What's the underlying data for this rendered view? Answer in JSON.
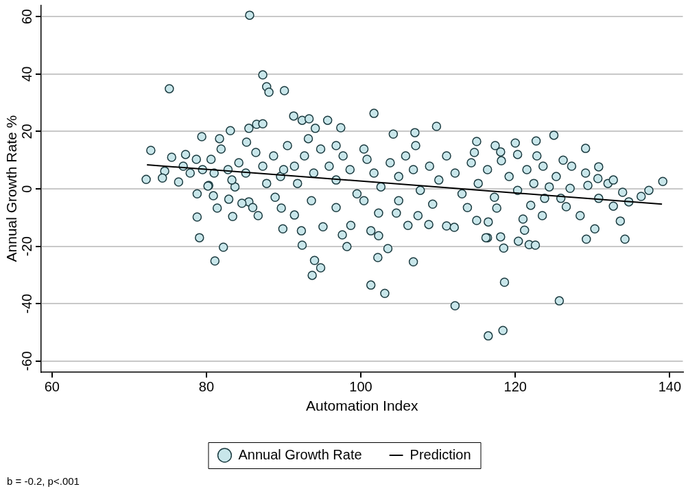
{
  "chart_data": {
    "type": "scatter",
    "xlabel": "Automation Index",
    "ylabel": "Annual Growth Rate %",
    "xlim": [
      58.6,
      141.7
    ],
    "ylim": [
      -63.8,
      64
    ],
    "xticks": [
      60,
      80,
      100,
      120,
      140
    ],
    "yticks": [
      -60,
      -40,
      -20,
      0,
      20,
      40,
      60
    ],
    "grid": "y",
    "legend": "bottom",
    "marker": "circle",
    "annotations": [
      "b = -0.2, p<.001"
    ],
    "series": [
      {
        "name": "Annual Growth Rate",
        "color": "#c8e6ea",
        "x": [
          85.6,
          75.2,
          87.3,
          87.8,
          88.1,
          90.1,
          101.7,
          91.3,
          92.4,
          93.3,
          95.7,
          97.4,
          109.8,
          104.2,
          107.0,
          115.0,
          83.1,
          79.4,
          72.8,
          85.5,
          86.5,
          87.3,
          81.7,
          72.2,
          75.5,
          77.3,
          74.6,
          74.3,
          76.4,
          78.7,
          80.3,
          125.0,
          122.7,
          120.0,
          129.1,
          126.2,
          130.8,
          130.7,
          132.0,
          139.1,
          127.1,
          118.1,
          120.3,
          132.7,
          128.4,
          130.3,
          129.2,
          134.2,
          133.6,
          118.6,
          125.7,
          116.5,
          118.4,
          116.4,
          118.1,
          118.5,
          120.4,
          121.8,
          122.6,
          121.2,
          121.0,
          123.5,
          122.0,
          116.5,
          117.6,
          126.6,
          125.9,
          123.8,
          130.8,
          134.7,
          136.3,
          137.3,
          133.9,
          129.4,
          89.9,
          92.3,
          92.4,
          94.0,
          94.8,
          93.7,
          97.6,
          98.2,
          98.7,
          101.3,
          102.3,
          103.5,
          102.2,
          101.3,
          103.1,
          106.8,
          112.2,
          108.8,
          111.1,
          112.1,
          95.1,
          91.4,
          89.7,
          102.3,
          104.6,
          106.1,
          107.4,
          115.0,
          116.2,
          78.8,
          79.1,
          82.2,
          81.1,
          81.4,
          83.4,
          86.7,
          85.5,
          84.6,
          82.9,
          80.2,
          80.9,
          80.6,
          81.9,
          82.8,
          84.2,
          85.2,
          86.4,
          87.3,
          88.7,
          89.6,
          90.5,
          91.4,
          91.8,
          92.7,
          93.9,
          94.8,
          95.9,
          96.8,
          97.7,
          98.6,
          99.5,
          100.8,
          101.7,
          102.6,
          103.8,
          104.9,
          105.8,
          106.8,
          107.7,
          108.9,
          110.1,
          111.1,
          112.2,
          113.1,
          114.3,
          115.2,
          116.4,
          117.3,
          118.2,
          119.2,
          120.3,
          121.5,
          122.4,
          123.6,
          124.4,
          125.3,
          78.8,
          83.7,
          86.0,
          88.9,
          93.6,
          96.8,
          100.4,
          104.9,
          109.3,
          113.8,
          77.0,
          77.9,
          79.5,
          81.0,
          83.3,
          85.1,
          87.8,
          90.0,
          93.2,
          94.1,
          96.8,
          100.4,
          107.1,
          114.7,
          117.4,
          122.8,
          127.3,
          129.1,
          132.7
        ],
        "values": [
          60.5,
          34.9,
          39.7,
          35.6,
          33.7,
          34.2,
          26.3,
          25.4,
          23.9,
          24.4,
          23.9,
          21.3,
          21.8,
          19.1,
          19.6,
          16.5,
          20.3,
          18.2,
          13.4,
          21.1,
          22.5,
          22.7,
          17.5,
          3.3,
          11.0,
          12.0,
          6.2,
          3.8,
          2.4,
          10.3,
          1.2,
          18.7,
          16.7,
          16.0,
          14.1,
          10.0,
          7.7,
          3.6,
          1.9,
          2.6,
          0.2,
          12.9,
          12.0,
          -6.0,
          -9.3,
          -13.9,
          -17.5,
          -17.5,
          -11.2,
          -32.5,
          -39.0,
          -51.2,
          -49.3,
          -17.0,
          -16.7,
          -20.6,
          -18.2,
          -19.4,
          -19.6,
          -14.4,
          -10.5,
          -9.3,
          -5.7,
          -11.5,
          -6.7,
          -6.2,
          -3.3,
          -3.3,
          -3.3,
          -4.5,
          -2.6,
          -0.5,
          -1.2,
          1.2,
          -13.9,
          -14.6,
          -19.6,
          -24.9,
          -27.5,
          -30.1,
          -16.0,
          -20.1,
          -12.7,
          -14.6,
          -16.3,
          -20.8,
          -23.9,
          -33.5,
          -36.4,
          -25.4,
          -40.7,
          -12.4,
          -12.9,
          -13.4,
          -13.2,
          -9.1,
          -6.7,
          -8.4,
          -8.4,
          -12.7,
          -9.3,
          -11.0,
          -17.0,
          -9.8,
          -17.0,
          -20.3,
          -25.1,
          -6.7,
          -9.6,
          -9.3,
          -4.5,
          -5.0,
          -3.6,
          1.0,
          -2.4,
          10.3,
          13.9,
          6.7,
          9.1,
          16.3,
          12.7,
          7.9,
          11.5,
          4.3,
          15.1,
          7.9,
          1.9,
          11.5,
          5.5,
          13.9,
          7.9,
          3.1,
          11.5,
          6.7,
          -1.7,
          10.3,
          5.5,
          0.7,
          9.1,
          4.3,
          11.5,
          6.7,
          -0.5,
          7.9,
          3.1,
          11.5,
          5.5,
          -1.7,
          9.1,
          1.9,
          6.7,
          -2.9,
          9.8,
          4.3,
          -0.5,
          6.7,
          1.9,
          7.9,
          0.7,
          4.3,
          -1.7,
          0.7,
          -6.5,
          -2.9,
          -4.1,
          -6.5,
          -4.1,
          -4.1,
          -5.3,
          -6.5,
          7.9,
          5.5,
          6.7,
          5.5,
          3.1,
          5.5,
          1.9,
          6.7,
          17.5,
          21.1,
          15.1,
          13.9,
          15.1,
          12.7,
          15.1,
          11.5,
          7.9,
          5.5,
          3.1
        ]
      },
      {
        "type": "line",
        "name": "Prediction",
        "color": "#000000",
        "line_style": "solid",
        "marker": "none",
        "x": [
          72.3,
          139.0
        ],
        "values": [
          8.4,
          -5.3
        ]
      }
    ]
  }
}
